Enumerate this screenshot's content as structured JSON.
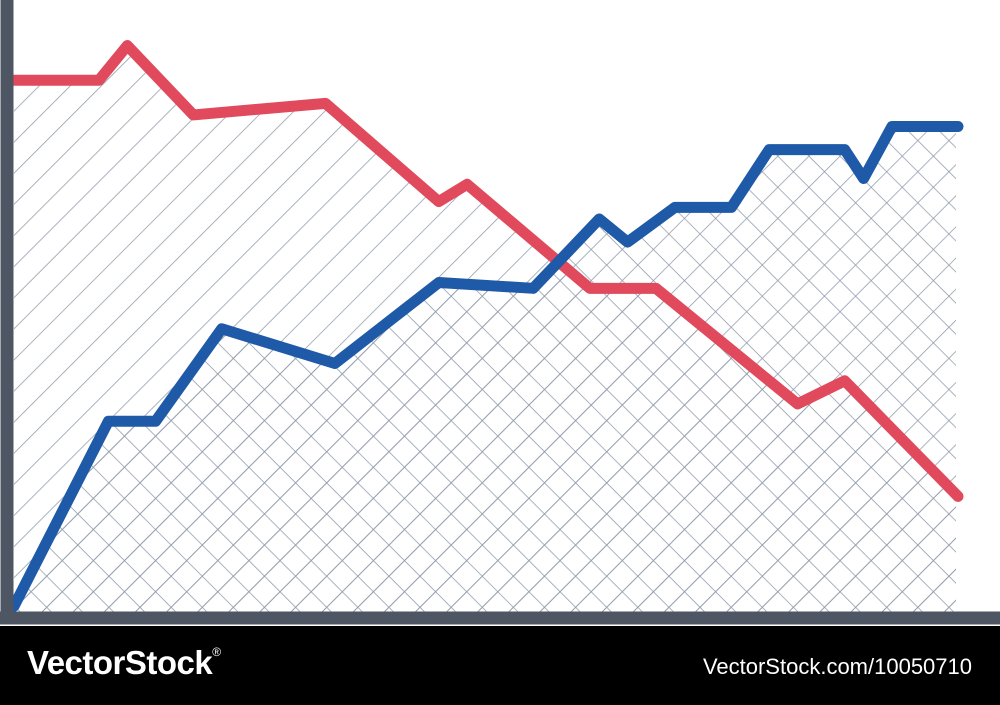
{
  "chart_data": {
    "type": "line",
    "title": "",
    "xlabel": "",
    "ylabel": "",
    "xlim": [
      0,
      100
    ],
    "ylim": [
      0,
      100
    ],
    "grid": false,
    "series": [
      {
        "color": "#e04a5c",
        "hatch": "diagonal",
        "x": [
          0,
          9,
          12,
          19,
          33,
          45,
          48,
          61,
          68,
          83,
          88,
          100
        ],
        "y": [
          92,
          92,
          98,
          86,
          88,
          71,
          74,
          56,
          56,
          36,
          40,
          20
        ],
        "pattern_extends_to_x": 100
      },
      {
        "color": "#1f5aa8",
        "hatch": "crosshatch",
        "x": [
          0,
          10,
          15,
          22,
          34,
          45,
          55,
          62,
          65,
          70,
          76,
          80,
          88,
          90,
          93,
          100
        ],
        "y": [
          1,
          33,
          33,
          49,
          43,
          57,
          56,
          68,
          64,
          70,
          70,
          80,
          80,
          75,
          84,
          84
        ]
      }
    ],
    "axis_color": "#4f5663",
    "hatch_color": "#8f9aaa"
  },
  "footer": {
    "logo_text": "VectorStock",
    "logo_mark": "®",
    "image_id": "VectorStock.com/10050710"
  }
}
